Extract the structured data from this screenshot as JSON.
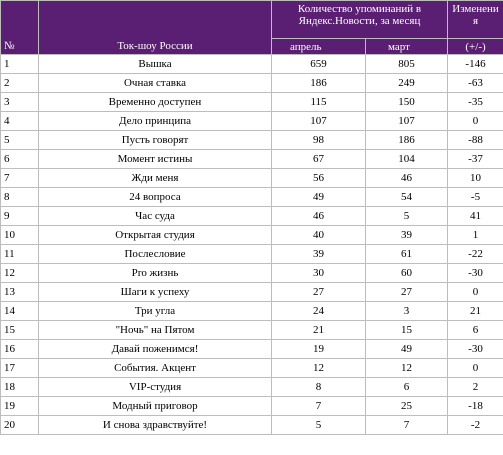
{
  "header": {
    "num_label": "№",
    "name_label": "Ток-шоу России",
    "mentions_line1": "Количество упоминаний в",
    "mentions_line2": "Яндекс.Новости, за месяц",
    "change_line1": "Изменени",
    "change_line2": "я",
    "april_label": "апрель",
    "march_label": "март",
    "plusminus_label": "(+/-)"
  },
  "rows": [
    {
      "num": "1",
      "name": "Вышка",
      "april": "659",
      "march": "805",
      "change": "-146"
    },
    {
      "num": "2",
      "name": "Очная ставка",
      "april": "186",
      "march": "249",
      "change": "-63"
    },
    {
      "num": "3",
      "name": "Временно доступен",
      "april": "115",
      "march": "150",
      "change": "-35"
    },
    {
      "num": "4",
      "name": "Дело принципа",
      "april": "107",
      "march": "107",
      "change": "0"
    },
    {
      "num": "5",
      "name": "Пусть говорят",
      "april": "98",
      "march": "186",
      "change": "-88"
    },
    {
      "num": "6",
      "name": "Момент истины",
      "april": "67",
      "march": "104",
      "change": "-37"
    },
    {
      "num": "7",
      "name": "Жди меня",
      "april": "56",
      "march": "46",
      "change": "10"
    },
    {
      "num": "8",
      "name": "24 вопроса",
      "april": "49",
      "march": "54",
      "change": "-5"
    },
    {
      "num": "9",
      "name": "Час суда",
      "april": "46",
      "march": "5",
      "change": "41"
    },
    {
      "num": "10",
      "name": "Открытая студия",
      "april": "40",
      "march": "39",
      "change": "1"
    },
    {
      "num": "11",
      "name": "Послесловие",
      "april": "39",
      "march": "61",
      "change": "-22"
    },
    {
      "num": "12",
      "name": "Pro жизнь",
      "april": "30",
      "march": "60",
      "change": "-30"
    },
    {
      "num": "13",
      "name": "Шаги к успеху",
      "april": "27",
      "march": "27",
      "change": "0"
    },
    {
      "num": "14",
      "name": "Три угла",
      "april": "24",
      "march": "3",
      "change": "21"
    },
    {
      "num": "15",
      "name": "\"Ночь\" на Пятом",
      "april": "21",
      "march": "15",
      "change": "6"
    },
    {
      "num": "16",
      "name": "Давай поженимся!",
      "april": "19",
      "march": "49",
      "change": "-30"
    },
    {
      "num": "17",
      "name": "События. Акцент",
      "april": "12",
      "march": "12",
      "change": "0"
    },
    {
      "num": "18",
      "name": "VIP-студия",
      "april": "8",
      "march": "6",
      "change": "2"
    },
    {
      "num": "19",
      "name": "Модный приговор",
      "april": "7",
      "march": "25",
      "change": "-18"
    },
    {
      "num": "20",
      "name": "И снова здравствуйте!",
      "april": "5",
      "march": "7",
      "change": "-2"
    }
  ]
}
